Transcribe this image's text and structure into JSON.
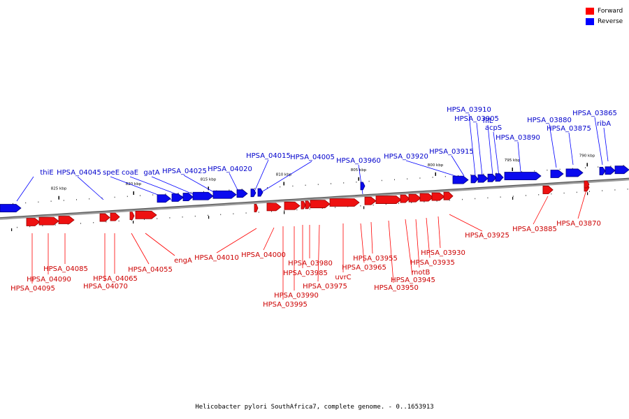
{
  "legend": [
    {
      "label": "Forward",
      "color": "#ff0000"
    },
    {
      "label": "Reverse",
      "color": "#0000ff"
    }
  ],
  "caption": "Helicobacter pylori SouthAfrica7, complete genome. - 0..1653913",
  "scale_labels": [
    "825 kbp",
    "820 kbp",
    "815 kbp",
    "810 kbp",
    "805 kbp",
    "800 kbp",
    "795 kbp",
    "790 kbp"
  ],
  "reverse_genes": [
    "thiE",
    "HPSA_04045",
    "speE",
    "coaE",
    "gatA",
    "HPSA_04025",
    "HPSA_04020",
    "HPSA_04015",
    "HPSA_04005",
    "HPSA_03960",
    "HPSA_03920",
    "HPSA_03915",
    "HPSA_03910",
    "HPSA_03905",
    "fliL",
    "acpS",
    "HPSA_03890",
    "HPSA_03880",
    "HPSA_03875",
    "HPSA_03865",
    "ribA"
  ],
  "forward_genes": [
    "HPSA_04095",
    "HPSA_04090",
    "HPSA_04085",
    "HPSA_04070",
    "HPSA_04065",
    "HPSA_04055",
    "engA",
    "HPSA_04010",
    "HPSA_04000",
    "HPSA_03995",
    "HPSA_03990",
    "HPSA_03985",
    "HPSA_03980",
    "HPSA_03975",
    "uvrC",
    "HPSA_03965",
    "HPSA_03955",
    "HPSA_03950",
    "HPSA_03945",
    "motB",
    "HPSA_03935",
    "HPSA_03930",
    "HPSA_03925",
    "HPSA_03885",
    "HPSA_03870"
  ]
}
